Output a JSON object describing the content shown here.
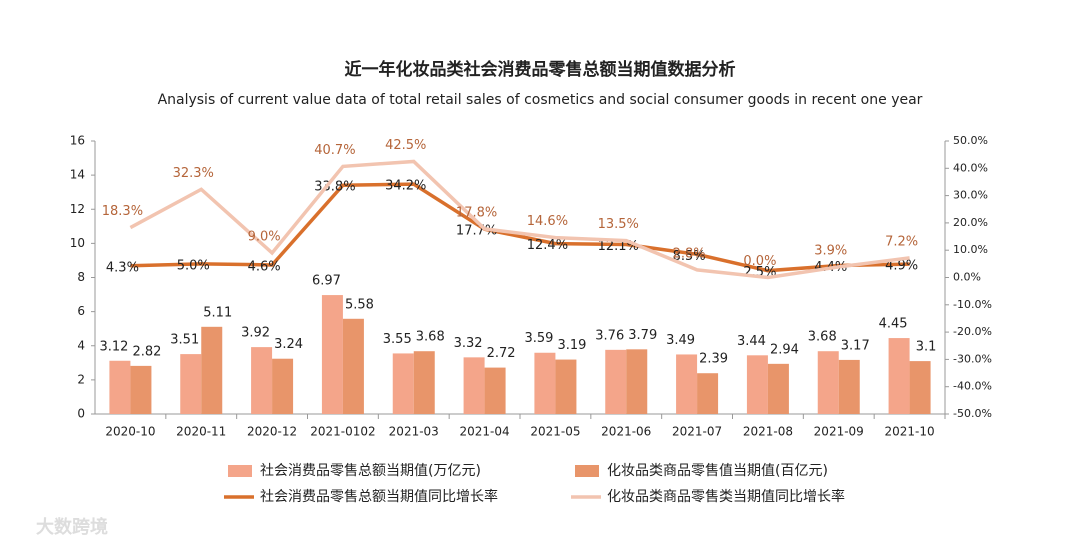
{
  "chart_data": {
    "type": "combo",
    "title": "近一年化妆品类社会消费品零售总额当期值数据分析",
    "subtitle": "Analysis of current value data of total retail sales of cosmetics and social consumer goods in recent one year",
    "categories": [
      "2020-10",
      "2020-11",
      "2020-12",
      "2021-0102",
      "2021-03",
      "2021-04",
      "2021-05",
      "2021-06",
      "2021-07",
      "2021-08",
      "2021-09",
      "2021-10"
    ],
    "series": [
      {
        "name": "社会消费品零售总额当期值(万亿元)",
        "type": "bar",
        "color": "#f4a58a",
        "values": [
          3.12,
          3.51,
          3.92,
          6.97,
          3.55,
          3.32,
          3.59,
          3.76,
          3.49,
          3.44,
          3.68,
          4.45
        ]
      },
      {
        "name": "化妆品类商品零售值当期值(百亿元)",
        "type": "bar",
        "color": "#e8956a",
        "values": [
          2.82,
          5.11,
          3.24,
          5.58,
          3.68,
          2.72,
          3.19,
          3.79,
          2.39,
          2.94,
          3.17,
          3.1
        ]
      },
      {
        "name": "社会消费品零售总额当期值同比增长率",
        "type": "line",
        "axis": "y2",
        "color": "#d9702c",
        "label_color": "#222222",
        "values": [
          4.3,
          5.0,
          4.6,
          33.8,
          34.2,
          17.7,
          12.4,
          12.1,
          8.5,
          2.5,
          4.4,
          4.9
        ],
        "value_labels": [
          "4.3%",
          "5.0%",
          "4.6%",
          "33.8%",
          "34.2%",
          "17.7%",
          "12.4%",
          "12.1%",
          "8.5%",
          "2.5%",
          "4.4%",
          "4.9%"
        ]
      },
      {
        "name": "化妆品类商品零售类当期值同比增长率",
        "type": "line",
        "axis": "y2",
        "color": "#f2c4b0",
        "label_color": "#b5653a",
        "values": [
          18.3,
          32.3,
          9.0,
          40.7,
          42.5,
          17.8,
          14.6,
          13.5,
          2.8,
          0.0,
          3.9,
          7.2
        ],
        "value_labels": [
          "18.3%",
          "32.3%",
          "9.0%",
          "40.7%",
          "42.5%",
          "17.8%",
          "14.6%",
          "13.5%",
          "2.8%",
          "0.0%",
          "3.9%",
          "7.2%"
        ]
      }
    ],
    "ylim": [
      0,
      16
    ],
    "yticks": [
      0,
      2,
      4,
      6,
      8,
      10,
      12,
      14,
      16
    ],
    "y2lim": [
      -50,
      50
    ],
    "y2ticks": [
      {
        "value": -50,
        "label": "-50.0%"
      },
      {
        "value": -40,
        "label": "-40.0%"
      },
      {
        "value": -30,
        "label": "-30.0%"
      },
      {
        "value": -20,
        "label": "-20.0%"
      },
      {
        "value": -10,
        "label": "-10.0%"
      },
      {
        "value": 0,
        "label": "0.0%"
      },
      {
        "value": 10,
        "label": "10.0%"
      },
      {
        "value": 20,
        "label": "20.0%"
      },
      {
        "value": 30,
        "label": "30.0%"
      },
      {
        "value": 40,
        "label": "40.0%"
      },
      {
        "value": 50,
        "label": "50.0%"
      }
    ],
    "watermark": "大数跨境"
  }
}
